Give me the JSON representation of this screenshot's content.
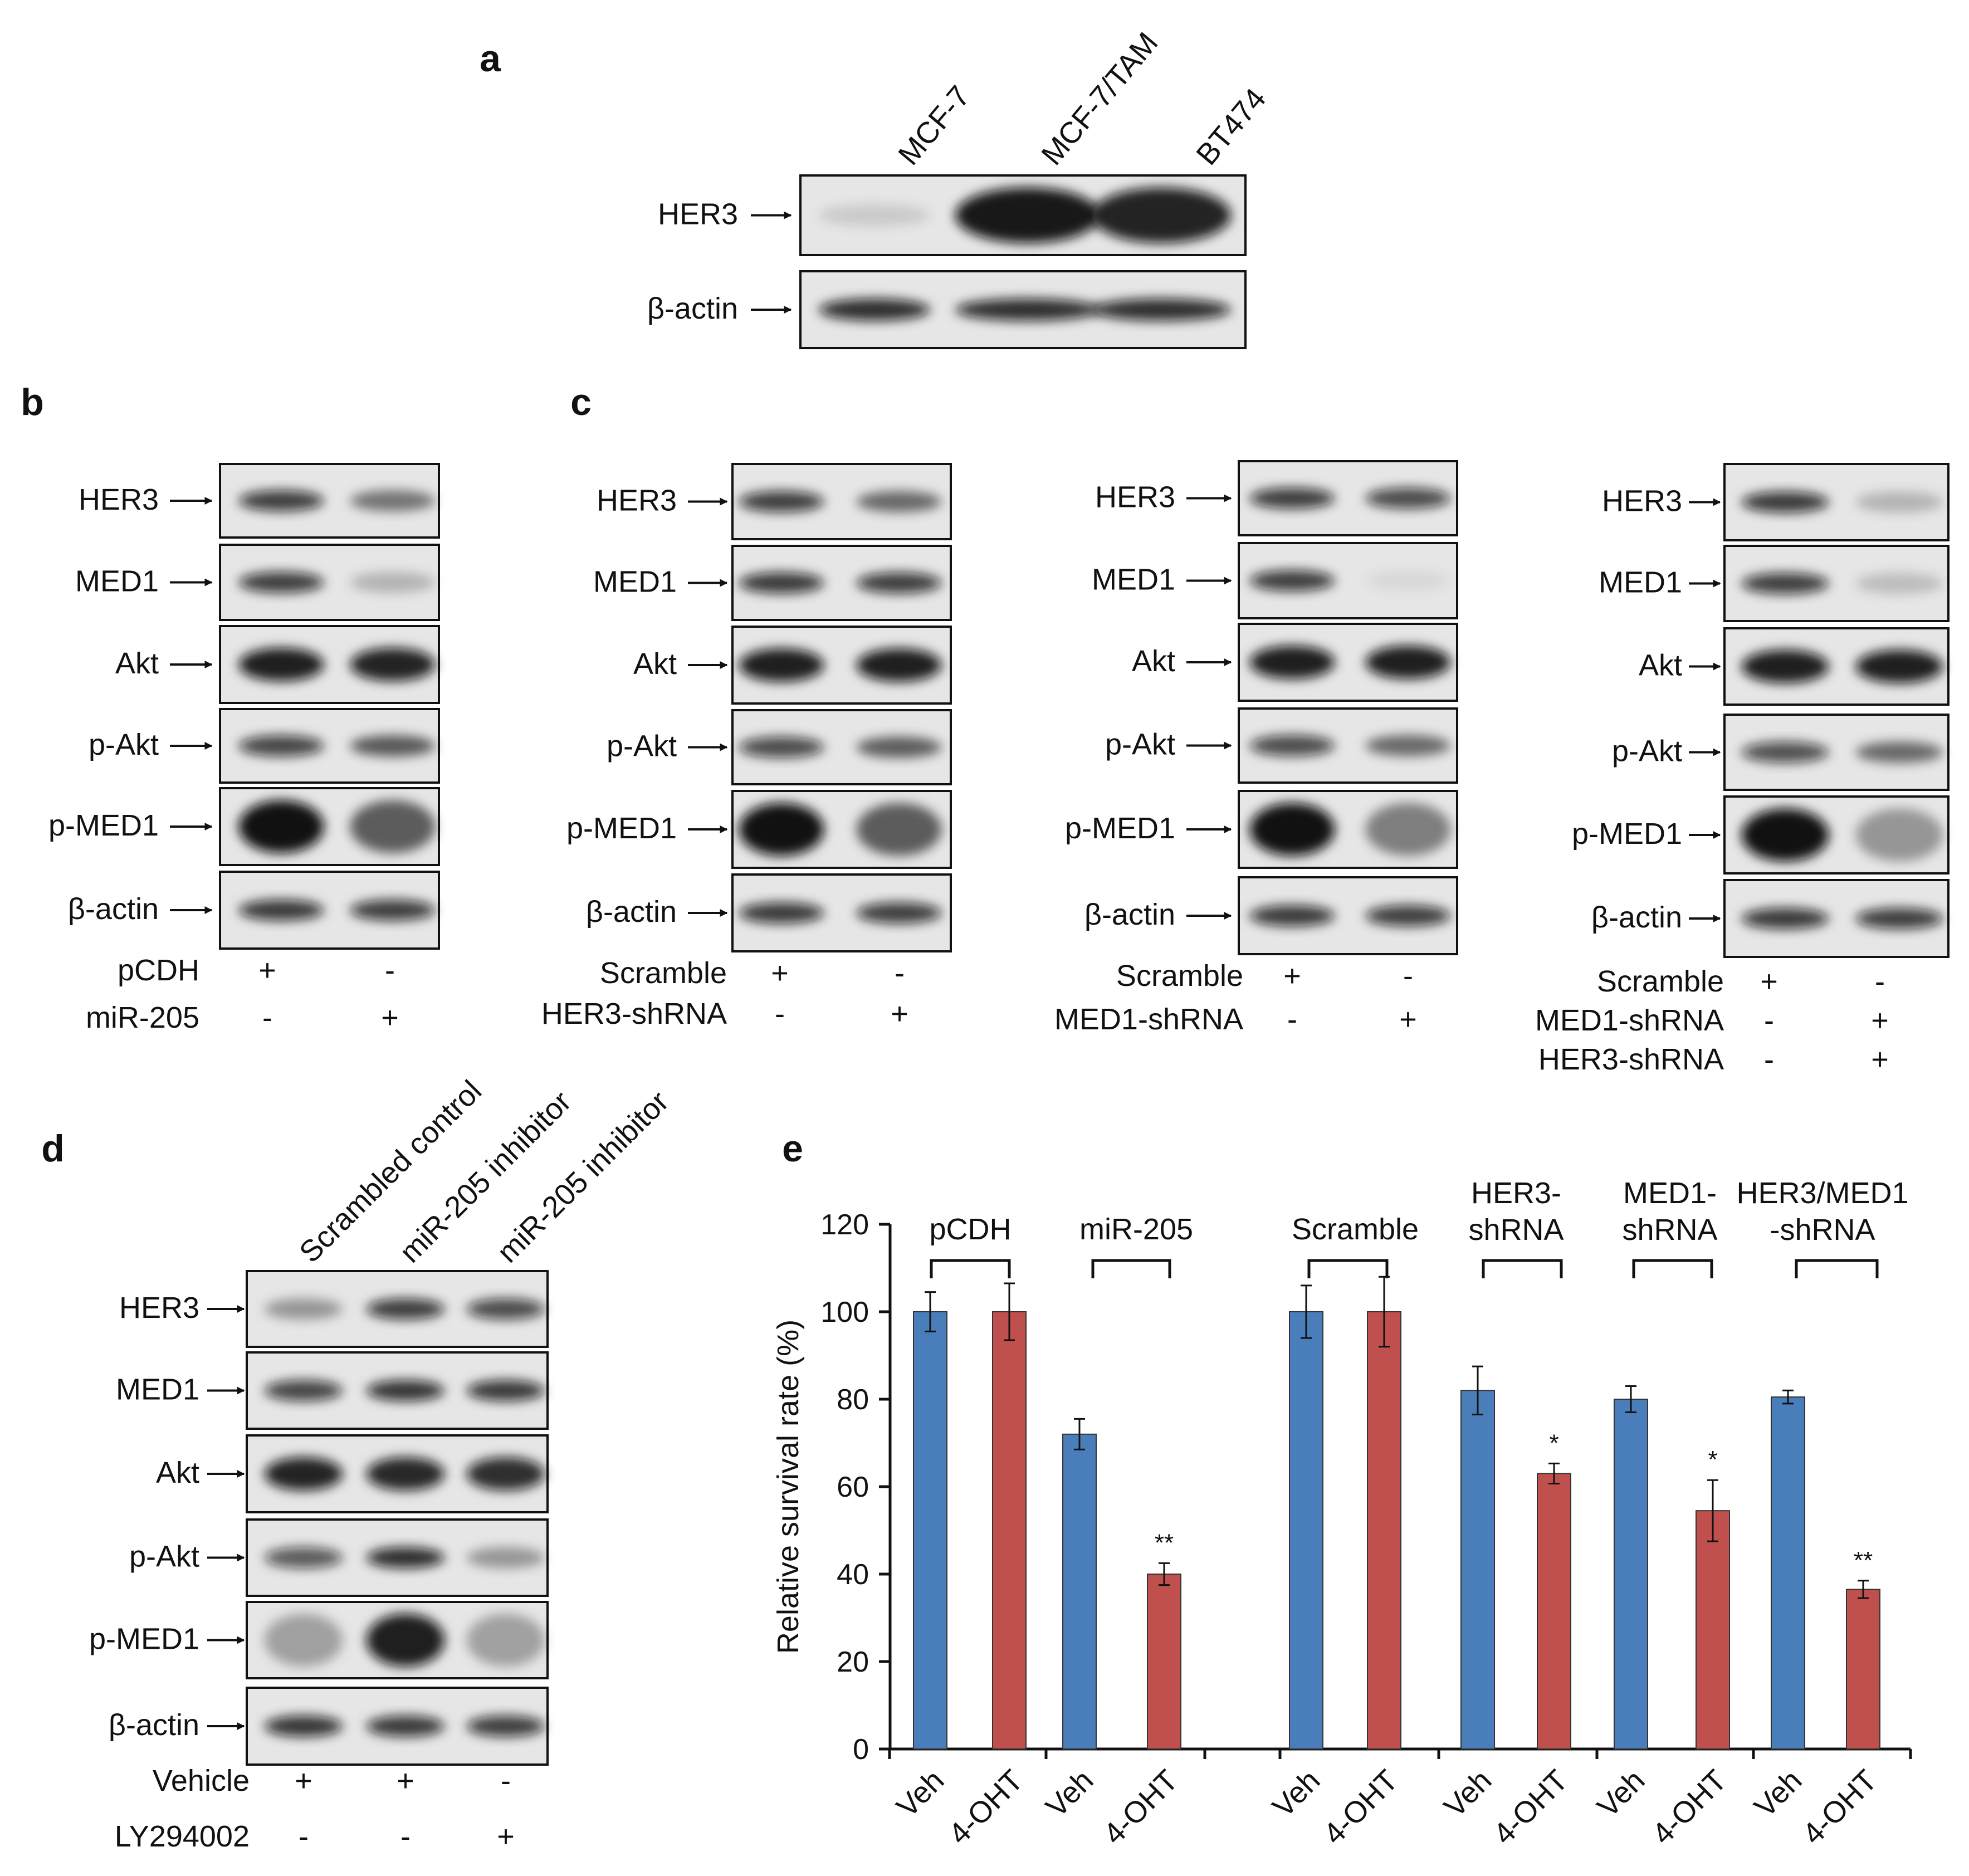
{
  "panels": [
    {
      "letter": "a",
      "lanes": [
        "MCF-7",
        "MCF-7/TAM",
        "BT474"
      ],
      "rows": [
        {
          "label": "HER3",
          "intensities": [
            0.12,
            0.95,
            0.9
          ]
        },
        {
          "label": "β-actin",
          "intensities": [
            0.85,
            0.85,
            0.85
          ]
        }
      ]
    },
    {
      "letter": "b",
      "rows": [
        {
          "label": "HER3",
          "intensities": [
            0.78,
            0.5
          ]
        },
        {
          "label": "MED1",
          "intensities": [
            0.78,
            0.22
          ]
        },
        {
          "label": "Akt",
          "intensities": [
            0.92,
            0.9
          ]
        },
        {
          "label": "p-Akt",
          "intensities": [
            0.75,
            0.62
          ]
        },
        {
          "label": "p-MED1",
          "intensities": [
            0.98,
            0.6
          ]
        },
        {
          "label": "β-actin",
          "intensities": [
            0.8,
            0.78
          ]
        }
      ],
      "conditions": [
        {
          "label": "pCDH",
          "signs": [
            "+",
            "-"
          ]
        },
        {
          "label": "miR-205",
          "signs": [
            "-",
            "+"
          ]
        }
      ]
    },
    {
      "letter": "c",
      "rows": [
        {
          "label": "HER3",
          "intensities": [
            0.78,
            0.55
          ]
        },
        {
          "label": "MED1",
          "intensities": [
            0.8,
            0.78
          ]
        },
        {
          "label": "Akt",
          "intensities": [
            0.92,
            0.92
          ]
        },
        {
          "label": "p-Akt",
          "intensities": [
            0.72,
            0.6
          ]
        },
        {
          "label": "p-MED1",
          "intensities": [
            0.98,
            0.6
          ]
        },
        {
          "label": "β-actin",
          "intensities": [
            0.8,
            0.78
          ]
        }
      ],
      "conditions": [
        {
          "label": "Scramble",
          "signs": [
            "+",
            "-"
          ]
        },
        {
          "label": "HER3-shRNA",
          "signs": [
            "-",
            "+"
          ]
        }
      ]
    },
    {
      "rows": [
        {
          "label": "HER3",
          "intensities": [
            0.78,
            0.72
          ]
        },
        {
          "label": "MED1",
          "intensities": [
            0.78,
            0.06
          ]
        },
        {
          "label": "Akt",
          "intensities": [
            0.92,
            0.92
          ]
        },
        {
          "label": "p-Akt",
          "intensities": [
            0.72,
            0.55
          ]
        },
        {
          "label": "p-MED1",
          "intensities": [
            0.98,
            0.45
          ]
        },
        {
          "label": "β-actin",
          "intensities": [
            0.8,
            0.78
          ]
        }
      ],
      "conditions": [
        {
          "label": "Scramble",
          "signs": [
            "+",
            "-"
          ]
        },
        {
          "label": "MED1-shRNA",
          "signs": [
            "-",
            "+"
          ]
        }
      ]
    },
    {
      "rows": [
        {
          "label": "HER3",
          "intensities": [
            0.8,
            0.22
          ]
        },
        {
          "label": "MED1",
          "intensities": [
            0.78,
            0.18
          ]
        },
        {
          "label": "Akt",
          "intensities": [
            0.92,
            0.92
          ]
        },
        {
          "label": "p-Akt",
          "intensities": [
            0.7,
            0.55
          ]
        },
        {
          "label": "p-MED1",
          "intensities": [
            0.98,
            0.35
          ]
        },
        {
          "label": "β-actin",
          "intensities": [
            0.8,
            0.78
          ]
        }
      ],
      "conditions": [
        {
          "label": "Scramble",
          "signs": [
            "+",
            "-"
          ]
        },
        {
          "label": "MED1-shRNA",
          "signs": [
            "-",
            "+"
          ]
        },
        {
          "label": "HER3-shRNA",
          "signs": [
            "-",
            "+"
          ]
        }
      ]
    },
    {
      "letter": "d",
      "lanes": [
        "Scrambled control",
        "miR-205 inhibitor",
        "miR-205 inhibitor"
      ],
      "rows": [
        {
          "label": "HER3",
          "intensities": [
            0.35,
            0.78,
            0.72
          ]
        },
        {
          "label": "MED1",
          "intensities": [
            0.75,
            0.82,
            0.8
          ]
        },
        {
          "label": "Akt",
          "intensities": [
            0.9,
            0.88,
            0.85
          ]
        },
        {
          "label": "p-Akt",
          "intensities": [
            0.65,
            0.85,
            0.35
          ]
        },
        {
          "label": "p-MED1",
          "intensities": [
            0.3,
            0.92,
            0.3
          ]
        },
        {
          "label": "β-actin",
          "intensities": [
            0.82,
            0.8,
            0.78
          ]
        }
      ],
      "conditions": [
        {
          "label": "Vehicle",
          "signs": [
            "+",
            "+",
            "-"
          ]
        },
        {
          "label": "LY294002",
          "signs": [
            "-",
            "-",
            "+"
          ]
        }
      ]
    }
  ],
  "panel_e": {
    "letter": "e",
    "group_labels": [
      "pCDH",
      "miR-205",
      "Scramble",
      "HER3-\nshRNA",
      "MED1-\nshRNA",
      "HER3/MED1\n-shRNA"
    ]
  },
  "chart_data": {
    "type": "bar",
    "title": "",
    "ylabel": "Relative survival rate (%)",
    "xlabel": "",
    "ylim": [
      0,
      120
    ],
    "yticks": [
      0,
      20,
      40,
      60,
      80,
      100,
      120
    ],
    "categories": [
      "Veh",
      "4-OHT",
      "Veh",
      "4-OHT",
      "Veh",
      "4-OHT",
      "Veh",
      "4-OHT",
      "Veh",
      "4-OHT",
      "Veh",
      "4-OHT"
    ],
    "groups": [
      "pCDH",
      "miR-205",
      "Scramble",
      "HER3-shRNA",
      "MED1-shRNA",
      "HER3/MED1-shRNA"
    ],
    "values": [
      100,
      100,
      72,
      40,
      100,
      100,
      82,
      63,
      80,
      54.5,
      80.5,
      36.5
    ],
    "errors": [
      4.5,
      6.5,
      3.5,
      2.5,
      6,
      8,
      5.5,
      2.3,
      3,
      7,
      1.5,
      2
    ],
    "bar_colors": [
      "#4a7ebb",
      "#c0504d",
      "#4a7ebb",
      "#c0504d",
      "#4a7ebb",
      "#c0504d",
      "#4a7ebb",
      "#c0504d",
      "#4a7ebb",
      "#c0504d",
      "#4a7ebb",
      "#c0504d"
    ],
    "significance": [
      "",
      "",
      "",
      "**",
      "",
      "",
      "",
      "*",
      "",
      "*",
      "",
      "**"
    ],
    "grid": false
  }
}
